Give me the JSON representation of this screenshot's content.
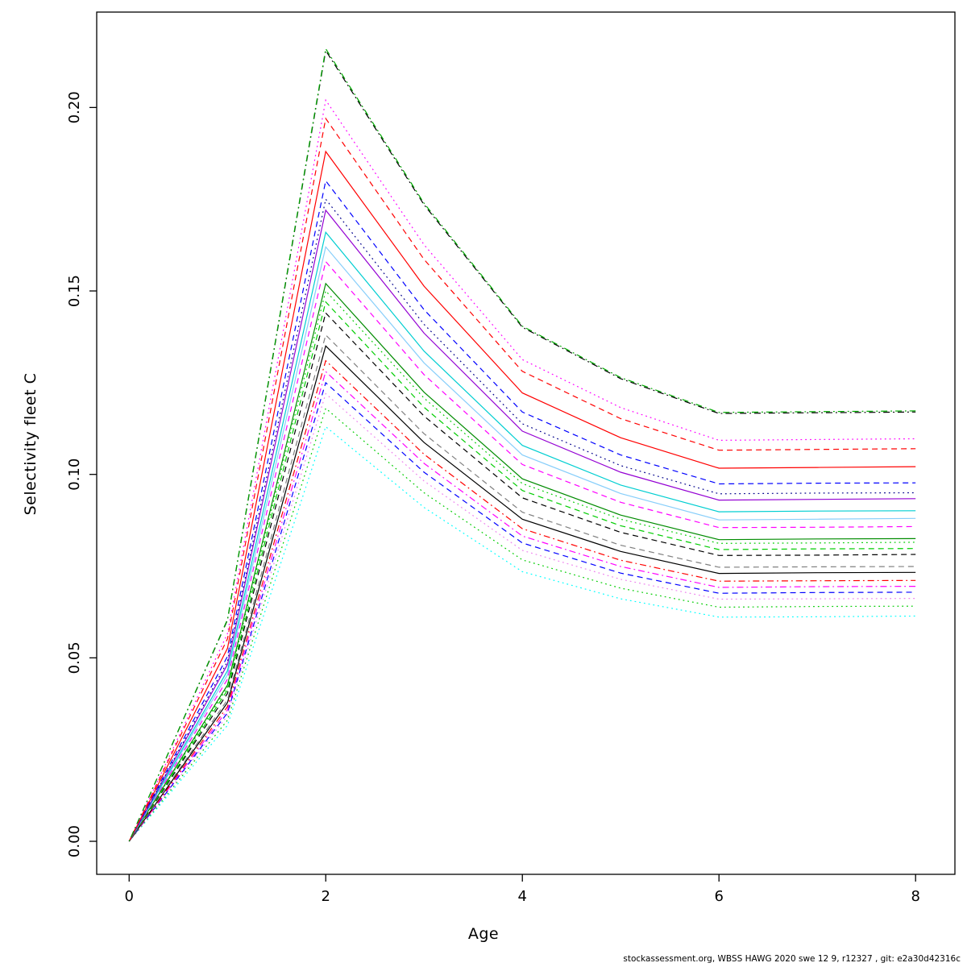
{
  "footer": "stockassessment.org, WBSS HAWG 2020 swe 12 9, r12327 , git: e2a30d42316c",
  "chart_data": {
    "type": "line",
    "title": "",
    "xlabel": "Age",
    "ylabel": "Selectivity fleet C",
    "grid": false,
    "legend": "none",
    "x": [
      0,
      1,
      2,
      3,
      4,
      5,
      6,
      7,
      8
    ],
    "xticks": [
      0,
      2,
      4,
      6,
      8
    ],
    "xtick_labels": [
      "0",
      "2",
      "4",
      "6",
      "8"
    ],
    "yticks": [
      0.0,
      0.05,
      0.1,
      0.15,
      0.2
    ],
    "ytick_labels": [
      "0.00",
      "0.05",
      "0.10",
      "0.15",
      "0.20"
    ],
    "xlim": [
      -0.33,
      8.4
    ],
    "ylim": [
      -0.009,
      0.226
    ],
    "series": [
      {
        "color": "#00AA00",
        "dash": "dashdot",
        "values": [
          0,
          0.0605,
          0.216,
          0.1739,
          0.1404,
          0.1264,
          0.1169,
          0.1171,
          0.1173
        ]
      },
      {
        "color": "#000000",
        "dash": "dashdot",
        "values": [
          0,
          0.0603,
          0.2155,
          0.1735,
          0.1401,
          0.1261,
          0.1166,
          0.1168,
          0.117
        ]
      },
      {
        "color": "#FF00FF",
        "dash": "dotted",
        "values": [
          0,
          0.0566,
          0.202,
          0.1626,
          0.1313,
          0.1182,
          0.1093,
          0.1095,
          0.1097
        ]
      },
      {
        "color": "#FF0000",
        "dash": "dashed",
        "values": [
          0,
          0.0552,
          0.197,
          0.1586,
          0.1281,
          0.1152,
          0.1066,
          0.1068,
          0.107
        ]
      },
      {
        "color": "#FF0000",
        "dash": "solid",
        "values": [
          0,
          0.0526,
          0.188,
          0.1513,
          0.1222,
          0.11,
          0.1017,
          0.1019,
          0.1021
        ]
      },
      {
        "color": "#0000FF",
        "dash": "dashed",
        "values": [
          0,
          0.0504,
          0.18,
          0.1449,
          0.117,
          0.1053,
          0.0974,
          0.0976,
          0.0977
        ]
      },
      {
        "color": "#00008B",
        "dash": "dotted",
        "values": [
          0,
          0.049,
          0.175,
          0.1409,
          0.1138,
          0.1024,
          0.0947,
          0.0949,
          0.095
        ]
      },
      {
        "color": "#9400D3",
        "dash": "solid",
        "values": [
          0,
          0.0482,
          0.172,
          0.1385,
          0.1118,
          0.1006,
          0.093,
          0.0932,
          0.0934
        ]
      },
      {
        "color": "#00CED1",
        "dash": "solid",
        "values": [
          0,
          0.0465,
          0.166,
          0.1336,
          0.1079,
          0.0971,
          0.0898,
          0.09,
          0.0901
        ]
      },
      {
        "color": "#87CEFA",
        "dash": "solid",
        "values": [
          0,
          0.0454,
          0.162,
          0.1304,
          0.1053,
          0.0948,
          0.0876,
          0.0878,
          0.088
        ]
      },
      {
        "color": "#FF00FF",
        "dash": "dashed",
        "values": [
          0,
          0.0442,
          0.158,
          0.1272,
          0.1027,
          0.0924,
          0.0855,
          0.0856,
          0.0858
        ]
      },
      {
        "color": "#008B00",
        "dash": "solid",
        "values": [
          0,
          0.0426,
          0.152,
          0.1224,
          0.0988,
          0.0889,
          0.0822,
          0.0824,
          0.0825
        ]
      },
      {
        "color": "#00CD00",
        "dash": "dotted",
        "values": [
          0,
          0.042,
          0.15,
          0.1208,
          0.0975,
          0.0878,
          0.0812,
          0.0813,
          0.0815
        ]
      },
      {
        "color": "#00CD00",
        "dash": "dashed",
        "values": [
          0,
          0.0412,
          0.147,
          0.1183,
          0.0956,
          0.086,
          0.0795,
          0.0797,
          0.0798
        ]
      },
      {
        "color": "#000000",
        "dash": "dashed",
        "values": [
          0,
          0.0403,
          0.144,
          0.1159,
          0.0936,
          0.0842,
          0.0779,
          0.078,
          0.0782
        ]
      },
      {
        "color": "#808080",
        "dash": "dashed",
        "values": [
          0,
          0.0386,
          0.138,
          0.1111,
          0.0897,
          0.0807,
          0.0747,
          0.0748,
          0.0749
        ]
      },
      {
        "color": "#000000",
        "dash": "solid",
        "values": [
          0,
          0.0378,
          0.135,
          0.1087,
          0.0878,
          0.079,
          0.073,
          0.0732,
          0.0733
        ]
      },
      {
        "color": "#FF0000",
        "dash": "dashdot",
        "values": [
          0,
          0.0367,
          0.131,
          0.1055,
          0.0852,
          0.0766,
          0.0709,
          0.071,
          0.0711
        ]
      },
      {
        "color": "#FF00FF",
        "dash": "dashdot",
        "values": [
          0,
          0.0358,
          0.128,
          0.103,
          0.0832,
          0.0749,
          0.0692,
          0.0694,
          0.0695
        ]
      },
      {
        "color": "#0000FF",
        "dash": "dashed",
        "values": [
          0,
          0.035,
          0.125,
          0.1006,
          0.0813,
          0.0731,
          0.0676,
          0.0678,
          0.0679
        ]
      },
      {
        "color": "#EE82EE",
        "dash": "dotted",
        "values": [
          0,
          0.0342,
          0.122,
          0.0982,
          0.0793,
          0.0714,
          0.066,
          0.0661,
          0.0662
        ]
      },
      {
        "color": "#00CD00",
        "dash": "dotted",
        "values": [
          0,
          0.033,
          0.118,
          0.095,
          0.0767,
          0.069,
          0.0638,
          0.064,
          0.0641
        ]
      },
      {
        "color": "#00FFFF",
        "dash": "dotted",
        "values": [
          0,
          0.0316,
          0.113,
          0.091,
          0.0735,
          0.0661,
          0.0611,
          0.0612,
          0.0614
        ]
      }
    ]
  }
}
